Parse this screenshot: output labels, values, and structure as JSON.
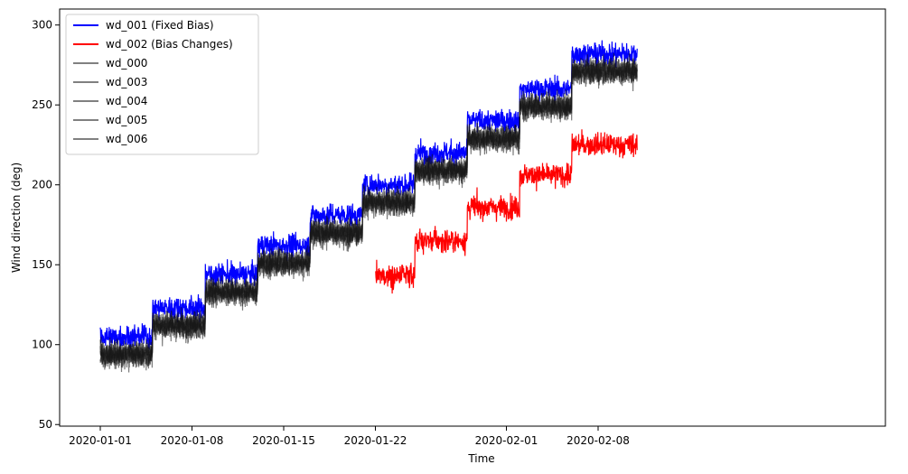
{
  "chart_data": {
    "type": "line",
    "title": "",
    "xlabel": "Time",
    "ylabel": "Wind direction (deg)",
    "x_axis_type": "date",
    "xlim": [
      "2020-01-01",
      "2020-02-11"
    ],
    "ylim": [
      49,
      310
    ],
    "x_ticks": [
      "2020-01-01",
      "2020-01-08",
      "2020-01-15",
      "2020-01-22",
      "2020-02-01",
      "2020-02-08"
    ],
    "y_ticks": [
      50,
      100,
      150,
      200,
      250,
      300
    ],
    "grid": false,
    "legend_position": "top-left",
    "segments": [
      {
        "start": "2020-01-01",
        "end": "2020-01-05",
        "base": 93
      },
      {
        "start": "2020-01-05",
        "end": "2020-01-09",
        "base": 111
      },
      {
        "start": "2020-01-09",
        "end": "2020-01-13",
        "base": 132
      },
      {
        "start": "2020-01-13",
        "end": "2020-01-17",
        "base": 150
      },
      {
        "start": "2020-01-17",
        "end": "2020-01-21",
        "base": 169
      },
      {
        "start": "2020-01-21",
        "end": "2020-01-25",
        "base": 188
      },
      {
        "start": "2020-01-25",
        "end": "2020-01-29",
        "base": 208
      },
      {
        "start": "2020-01-29",
        "end": "2020-02-02",
        "base": 228
      },
      {
        "start": "2020-02-02",
        "end": "2020-02-06",
        "base": 248
      },
      {
        "start": "2020-02-06",
        "end": "2020-02-11",
        "base": 270
      }
    ],
    "series": [
      {
        "name": "wd_001 (Fixed Bias)",
        "color": "#0000ff",
        "kind": "fixed_bias",
        "bias": 12
      },
      {
        "name": "wd_002 (Bias Changes)",
        "color": "#ff0000",
        "kind": "bias_changes",
        "approx_levels": [
          {
            "start": "2020-01-01",
            "end": "2020-01-22",
            "follows_group": true
          },
          {
            "start": "2020-01-22",
            "end": "2020-01-25",
            "value": 143
          },
          {
            "start": "2020-01-25",
            "end": "2020-01-29",
            "value": 165
          },
          {
            "start": "2020-01-29",
            "end": "2020-02-02",
            "value": 186
          },
          {
            "start": "2020-02-02",
            "end": "2020-02-06",
            "value": 206
          },
          {
            "start": "2020-02-06",
            "end": "2020-02-11",
            "value": 225
          }
        ]
      },
      {
        "name": "wd_000",
        "color": "#808080",
        "kind": "group"
      },
      {
        "name": "wd_003",
        "color": "#808080",
        "kind": "group"
      },
      {
        "name": "wd_004",
        "color": "#808080",
        "kind": "group"
      },
      {
        "name": "wd_005",
        "color": "#808080",
        "kind": "group"
      },
      {
        "name": "wd_006",
        "color": "#808080",
        "kind": "group"
      }
    ]
  }
}
